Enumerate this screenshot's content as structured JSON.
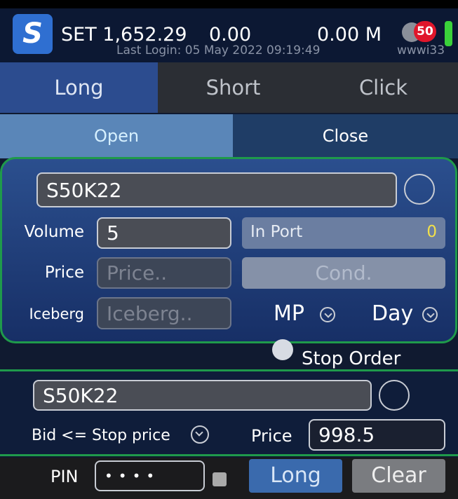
{
  "header": {
    "index": "SET 1,652.29",
    "change": "0.00",
    "volume": "0.00 M",
    "last_login": "Last Login: 05 May 2022 09:19:49",
    "user": "wwwi33",
    "badge": "50"
  },
  "tabs": [
    "Long",
    "Short",
    "Click"
  ],
  "subtabs": [
    "Open",
    "Close"
  ],
  "order": {
    "symbol": "S50K22",
    "volume_label": "Volume",
    "volume": "5",
    "in_port_label": "In Port",
    "in_port": "0",
    "price_label": "Price",
    "price_placeholder": "Price..",
    "cond": "Cond.",
    "iceberg_label": "Iceberg",
    "iceberg_placeholder": "Iceberg..",
    "price_type": "MP",
    "validity": "Day"
  },
  "stop_order": {
    "label": "Stop Order",
    "symbol": "S50K22",
    "condition": "Bid <= Stop price",
    "price_label": "Price",
    "price": "998.5"
  },
  "footer": {
    "pin_label": "PIN",
    "pin": "••••",
    "submit": "Long",
    "clear": "Clear"
  }
}
